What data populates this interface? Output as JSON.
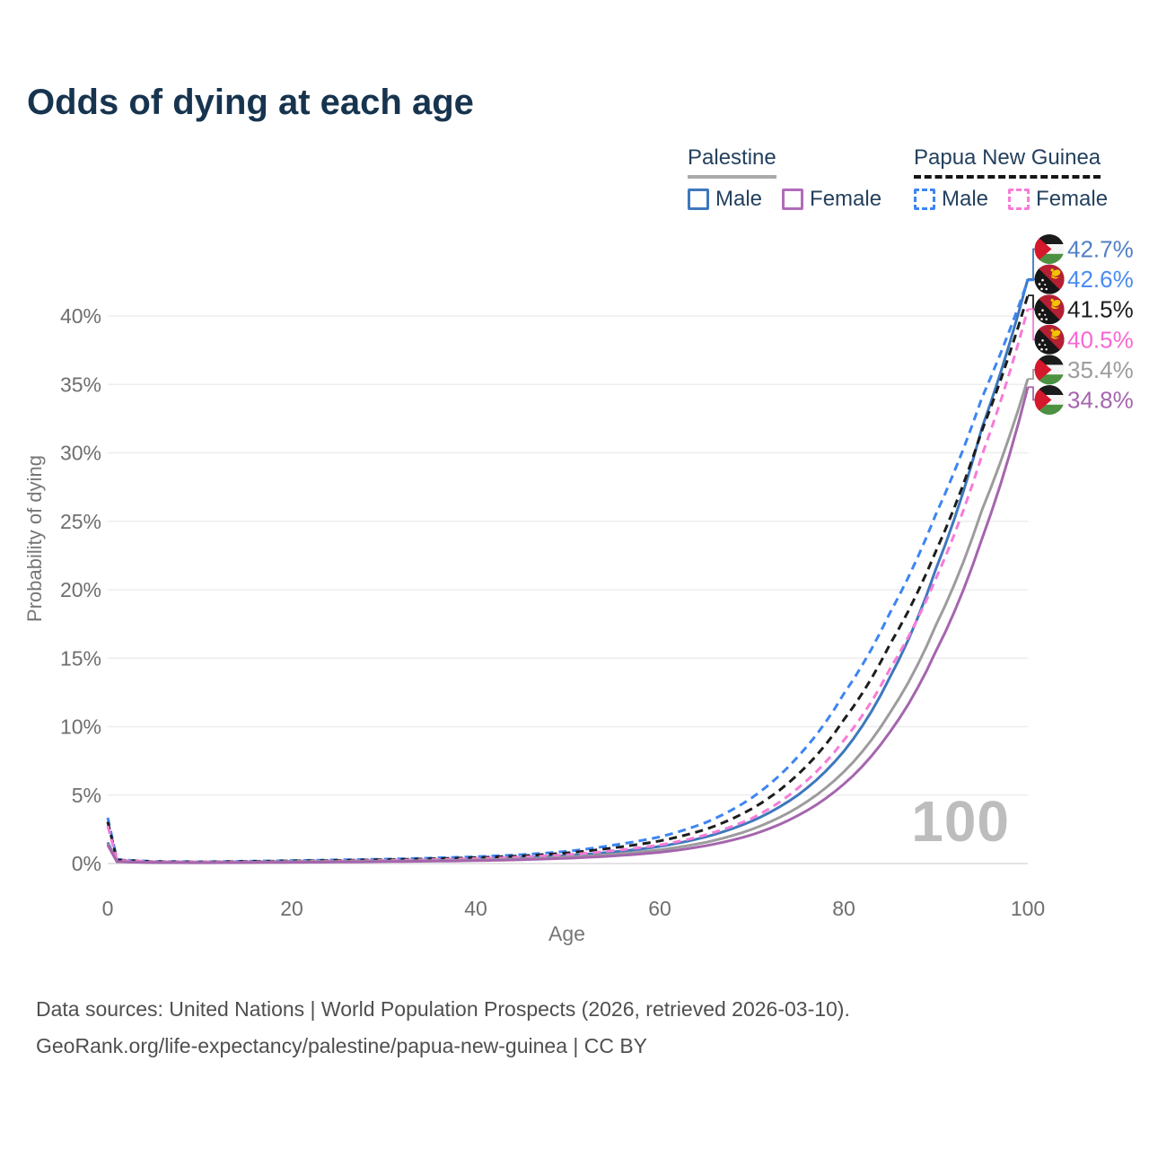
{
  "title": "Odds of dying at each age",
  "watermark": "100",
  "legend": {
    "groups": [
      {
        "country": "Palestine",
        "line_style": "solid",
        "underline_color": "#a9a9a9",
        "items": [
          {
            "label": "Male",
            "color": "#3e78bd",
            "dashed": false
          },
          {
            "label": "Female",
            "color": "#b06cba",
            "dashed": false
          }
        ]
      },
      {
        "country": "Papua New Guinea",
        "line_style": "dashed",
        "underline_color": "#161616",
        "items": [
          {
            "label": "Male",
            "color": "#3d85f2",
            "dashed": true
          },
          {
            "label": "Female",
            "color": "#f87bd8",
            "dashed": true
          }
        ]
      }
    ]
  },
  "chart_data": {
    "type": "line",
    "title": "Odds of dying at each age",
    "xlabel": "Age",
    "ylabel": "Probability of dying",
    "xlim": [
      0,
      100
    ],
    "ylim": [
      0,
      44
    ],
    "grid": true,
    "legend_position": "top-right",
    "x_ticks": [
      0,
      20,
      40,
      60,
      80,
      100
    ],
    "y_ticks": [
      {
        "value": 0,
        "label": "0%"
      },
      {
        "value": 5,
        "label": "5%"
      },
      {
        "value": 10,
        "label": "10%"
      },
      {
        "value": 15,
        "label": "15%"
      },
      {
        "value": 20,
        "label": "20%"
      },
      {
        "value": 25,
        "label": "25%"
      },
      {
        "value": 30,
        "label": "30%"
      },
      {
        "value": 35,
        "label": "35%"
      },
      {
        "value": 40,
        "label": "40%"
      }
    ],
    "unit": "percent",
    "ages": [
      0,
      1,
      5,
      10,
      15,
      20,
      25,
      30,
      35,
      40,
      45,
      50,
      55,
      60,
      65,
      70,
      75,
      80,
      85,
      90,
      95,
      100
    ],
    "series": [
      {
        "name": "Palestine Male",
        "country": "Palestine",
        "sex": "Male",
        "color": "#3e78bd",
        "dash": false,
        "flag": "palestine",
        "end_label": "42.7%",
        "label_color": "#507fc6",
        "values": [
          1.55,
          0.16,
          0.09,
          0.08,
          0.11,
          0.16,
          0.19,
          0.22,
          0.26,
          0.32,
          0.42,
          0.58,
          0.85,
          1.25,
          1.95,
          3.1,
          5.0,
          8.2,
          13.6,
          21.5,
          31.8,
          42.7
        ]
      },
      {
        "name": "Papua New Guinea Male",
        "country": "Papua New Guinea",
        "sex": "Male",
        "color": "#3d85f2",
        "dash": true,
        "flag": "png",
        "end_label": "42.6%",
        "label_color": "#4a8bf2",
        "values": [
          3.35,
          0.3,
          0.16,
          0.13,
          0.17,
          0.22,
          0.27,
          0.32,
          0.4,
          0.5,
          0.65,
          0.9,
          1.35,
          1.95,
          3.0,
          4.8,
          7.8,
          12.4,
          18.3,
          25.5,
          34.0,
          42.6
        ]
      },
      {
        "name": "Papua New Guinea Overall",
        "country": "Papua New Guinea",
        "sex": "Both",
        "color": "#1d1d1d",
        "dash": true,
        "flag": "png",
        "end_label": "41.5%",
        "label_color": "#1d1d1d",
        "values": [
          3.05,
          0.27,
          0.14,
          0.12,
          0.15,
          0.19,
          0.23,
          0.28,
          0.34,
          0.43,
          0.56,
          0.78,
          1.15,
          1.65,
          2.5,
          4.0,
          6.5,
          10.5,
          16.0,
          22.8,
          31.6,
          41.5
        ]
      },
      {
        "name": "Papua New Guinea Female",
        "country": "Papua New Guinea",
        "sex": "Female",
        "color": "#f87bd8",
        "dash": true,
        "flag": "png",
        "end_label": "40.5%",
        "label_color": "#f768d2",
        "values": [
          2.75,
          0.24,
          0.13,
          0.11,
          0.12,
          0.15,
          0.19,
          0.23,
          0.28,
          0.36,
          0.47,
          0.65,
          0.95,
          1.35,
          2.1,
          3.3,
          5.5,
          9.0,
          14.2,
          20.8,
          29.8,
          40.5
        ]
      },
      {
        "name": "Palestine Overall",
        "country": "Palestine",
        "sex": "Both",
        "color": "#9c9c9c",
        "dash": false,
        "flag": "palestine",
        "end_label": "35.4%",
        "label_color": "#9c9c9c",
        "values": [
          1.45,
          0.14,
          0.08,
          0.07,
          0.09,
          0.13,
          0.15,
          0.18,
          0.21,
          0.26,
          0.34,
          0.47,
          0.68,
          1.0,
          1.55,
          2.5,
          4.1,
          6.7,
          11.0,
          17.4,
          25.8,
          35.4
        ]
      },
      {
        "name": "Palestine Female",
        "country": "Palestine",
        "sex": "Female",
        "color": "#a565ad",
        "dash": false,
        "flag": "palestine",
        "end_label": "34.8%",
        "label_color": "#a565ad",
        "values": [
          1.35,
          0.13,
          0.07,
          0.06,
          0.07,
          0.09,
          0.11,
          0.14,
          0.17,
          0.21,
          0.28,
          0.39,
          0.56,
          0.82,
          1.3,
          2.1,
          3.5,
          5.8,
          9.6,
          15.5,
          23.7,
          34.8
        ]
      }
    ]
  },
  "footer": {
    "line1": "Data sources: United Nations | World Population Prospects (2026, retrieved 2026-03-10).",
    "line2": "GeoRank.org/life-expectancy/palestine/papua-new-guinea | CC BY"
  }
}
